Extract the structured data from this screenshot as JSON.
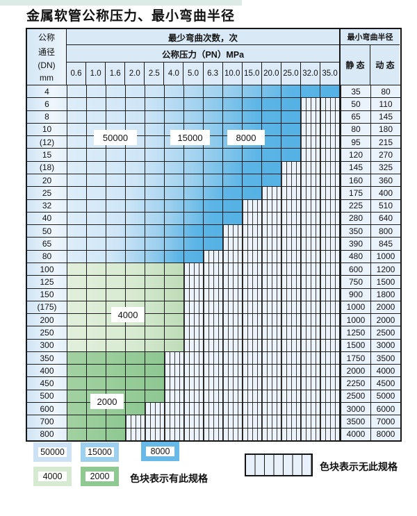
{
  "title": "金属软管公称压力、最小弯曲半径",
  "table": {
    "corner": [
      "公称",
      "通径",
      "(DN)",
      "mm"
    ],
    "bend_count_header": "最少弯曲次数，次",
    "pressure_header": "公称压力（PN）MPa",
    "pressure_cols": [
      "0.6",
      "1.0",
      "1.6",
      "2.0",
      "2.5",
      "4.0",
      "5.0",
      "6.3",
      "10.0",
      "15.0",
      "20.0",
      "25.0",
      "32.0",
      "35.0"
    ],
    "radius_header": "最小弯曲半径",
    "static_header": "静 态",
    "dynamic_header": "动 态",
    "rows": [
      {
        "dn": "4",
        "colored_cols": 14,
        "zone": "blue",
        "static": "35",
        "dynamic": "80"
      },
      {
        "dn": "6",
        "colored_cols": 12,
        "zone": "blue",
        "static": "50",
        "dynamic": "110"
      },
      {
        "dn": "8",
        "colored_cols": 12,
        "zone": "blue",
        "static": "65",
        "dynamic": "145"
      },
      {
        "dn": "10",
        "colored_cols": 12,
        "zone": "blue",
        "static": "80",
        "dynamic": "180"
      },
      {
        "dn": "(12)",
        "colored_cols": 12,
        "zone": "blue",
        "static": "95",
        "dynamic": "215"
      },
      {
        "dn": "15",
        "colored_cols": 12,
        "zone": "blue",
        "static": "120",
        "dynamic": "270"
      },
      {
        "dn": "(18)",
        "colored_cols": 11,
        "zone": "blue",
        "static": "145",
        "dynamic": "325"
      },
      {
        "dn": "20",
        "colored_cols": 11,
        "zone": "blue",
        "static": "160",
        "dynamic": "360"
      },
      {
        "dn": "25",
        "colored_cols": 10,
        "zone": "blue",
        "static": "175",
        "dynamic": "400"
      },
      {
        "dn": "32",
        "colored_cols": 9,
        "zone": "blue",
        "static": "225",
        "dynamic": "510"
      },
      {
        "dn": "40",
        "colored_cols": 9,
        "zone": "blue",
        "static": "280",
        "dynamic": "640"
      },
      {
        "dn": "50",
        "colored_cols": 8,
        "zone": "blue",
        "static": "350",
        "dynamic": "800"
      },
      {
        "dn": "65",
        "colored_cols": 8,
        "zone": "blue",
        "static": "390",
        "dynamic": "845"
      },
      {
        "dn": "80",
        "colored_cols": 7,
        "zone": "blue",
        "static": "480",
        "dynamic": "1000"
      },
      {
        "dn": "100",
        "colored_cols": 6,
        "zone": "green_light",
        "static": "600",
        "dynamic": "1200"
      },
      {
        "dn": "125",
        "colored_cols": 6,
        "zone": "green_light",
        "static": "750",
        "dynamic": "1500"
      },
      {
        "dn": "150",
        "colored_cols": 6,
        "zone": "green_light",
        "static": "900",
        "dynamic": "1800"
      },
      {
        "dn": "(175)",
        "colored_cols": 6,
        "zone": "green_light",
        "static": "1000",
        "dynamic": "2000"
      },
      {
        "dn": "200",
        "colored_cols": 6,
        "zone": "green_light",
        "static": "1000",
        "dynamic": "2000"
      },
      {
        "dn": "250",
        "colored_cols": 6,
        "zone": "green_light",
        "static": "1250",
        "dynamic": "2500"
      },
      {
        "dn": "300",
        "colored_cols": 6,
        "zone": "green_light",
        "static": "1500",
        "dynamic": "3000"
      },
      {
        "dn": "350",
        "colored_cols": 5,
        "zone": "green_mid",
        "static": "1750",
        "dynamic": "3500"
      },
      {
        "dn": "400",
        "colored_cols": 5,
        "zone": "green_mid",
        "static": "2000",
        "dynamic": "4000"
      },
      {
        "dn": "450",
        "colored_cols": 5,
        "zone": "green_mid",
        "static": "2250",
        "dynamic": "4500"
      },
      {
        "dn": "500",
        "colored_cols": 5,
        "zone": "green_mid",
        "static": "2500",
        "dynamic": "5000"
      },
      {
        "dn": "600",
        "colored_cols": 4,
        "zone": "green_mid",
        "static": "3000",
        "dynamic": "6000"
      },
      {
        "dn": "700",
        "colored_cols": 3,
        "zone": "green_mid",
        "static": "3500",
        "dynamic": "7000"
      },
      {
        "dn": "800",
        "colored_cols": 3,
        "zone": "green_mid",
        "static": "4000",
        "dynamic": "8000"
      }
    ]
  },
  "cycle_labels": [
    "50000",
    "15000",
    "8000",
    "4000",
    "2000"
  ],
  "legend": {
    "items": [
      {
        "value": "50000",
        "color": "#cde3f5"
      },
      {
        "value": "15000",
        "color": "#9dd0ee"
      },
      {
        "value": "8000",
        "color": "#67b9e8"
      },
      {
        "value": "4000",
        "color": "#d6ead1"
      },
      {
        "value": "2000",
        "color": "#8fc992"
      }
    ],
    "has_spec_text": "色块表示有此规格",
    "no_spec_text": "色块表示无此规格"
  },
  "colors": {
    "zones": {
      "blue": [
        "#ddedf9 0%",
        "#cfe6f7 32%",
        "#9dd0ee 58%",
        "#5cb5e6 82%",
        "#55b1e4 100%"
      ],
      "green_light": [
        "#e1efdb 0%",
        "#d8ebd2 55%",
        "#bedcb8 100%"
      ],
      "green_mid": [
        "#a2d1a1 0%",
        "#8ec892 100%"
      ]
    },
    "nospec_bg": "#edf3fa",
    "grid_line": "#1b1b1b"
  }
}
